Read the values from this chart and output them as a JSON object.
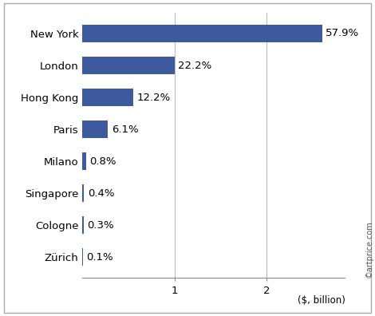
{
  "cities": [
    "New York",
    "London",
    "Hong Kong",
    "Paris",
    "Milano",
    "Singapore",
    "Cologne",
    "Zürich"
  ],
  "values": [
    2.6,
    1.0,
    0.55,
    0.275,
    0.036,
    0.018,
    0.0135,
    0.0045
  ],
  "labels": [
    "57.9%",
    "22.2%",
    "12.2%",
    "6.1%",
    "0.8%",
    "0.4%",
    "0.3%",
    "0.1%"
  ],
  "bar_color": "#3d5a9e",
  "background_color": "#ffffff",
  "xlabel": "($, billion)",
  "watermark": "©artprice.com",
  "xlim": [
    0,
    2.85
  ],
  "xticks": [
    1,
    2
  ],
  "bar_height": 0.55,
  "label_fontsize": 9.5,
  "tick_fontsize": 9.5
}
